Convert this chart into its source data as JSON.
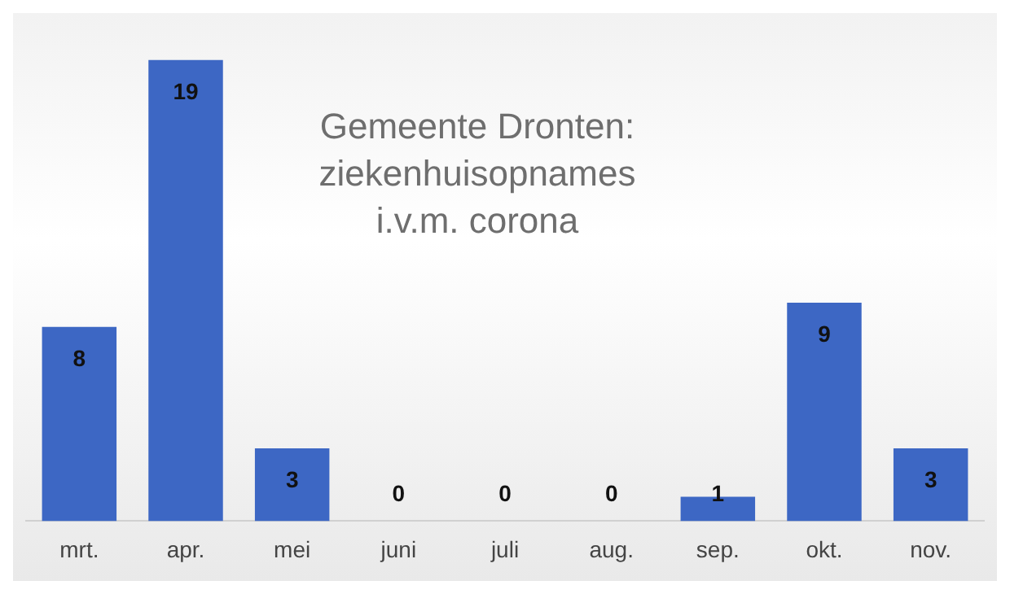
{
  "chart_data": {
    "type": "bar",
    "title": "Gemeente Dronten: ziekenhuisopnames i.v.m. corona",
    "categories": [
      "mrt.",
      "apr.",
      "mei",
      "juni",
      "juli",
      "aug.",
      "sep.",
      "okt.",
      "nov."
    ],
    "values": [
      8,
      19,
      3,
      0,
      0,
      0,
      1,
      9,
      3
    ],
    "color": "#3d67c4",
    "data_labels": true,
    "grid": false,
    "legend": false
  }
}
